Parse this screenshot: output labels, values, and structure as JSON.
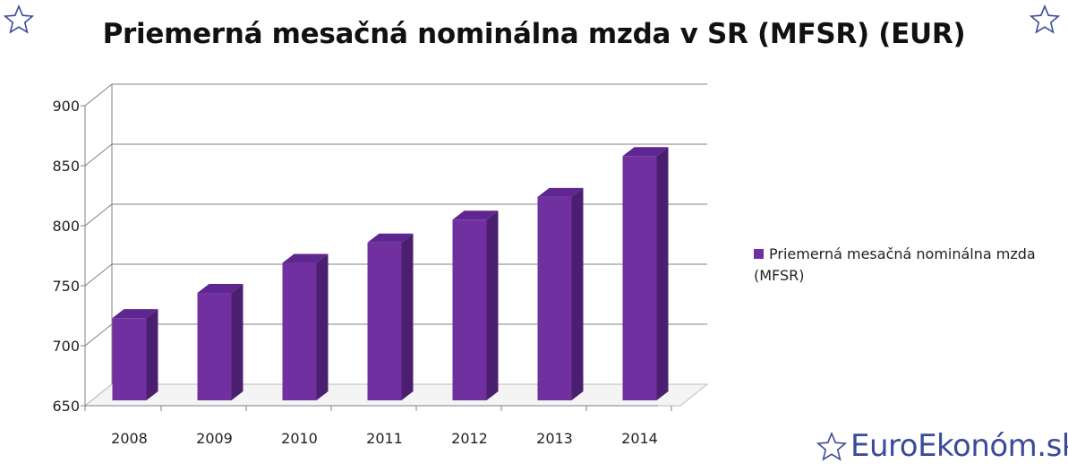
{
  "title": "Priemerná mesačná nominálna mzda v SR (MFSR) (EUR)",
  "legend": {
    "label": "Priemerná mesačná nominálna mzda (MFSR)",
    "color": "#7030a0"
  },
  "brand": {
    "text": "EuroEkonóm.sk",
    "color": "#3b4b9a",
    "icon": "star-icon"
  },
  "chart_data": {
    "type": "bar",
    "title": "Priemerná mesačná nominálna mzda v SR (MFSR) (EUR)",
    "categories": [
      "2008",
      "2009",
      "2010",
      "2011",
      "2012",
      "2013",
      "2014"
    ],
    "series": [
      {
        "name": "Priemerná mesačná nominálna mzda (MFSR)",
        "values": [
          723,
          744,
          769,
          786,
          805,
          824,
          858
        ],
        "color": "#7030a0"
      }
    ],
    "ylim": [
      650,
      900
    ],
    "yticks": [
      650,
      700,
      750,
      800,
      850,
      900
    ],
    "xlabel": "",
    "ylabel": "",
    "grid": true,
    "legend_position": "right",
    "style": "3d"
  }
}
